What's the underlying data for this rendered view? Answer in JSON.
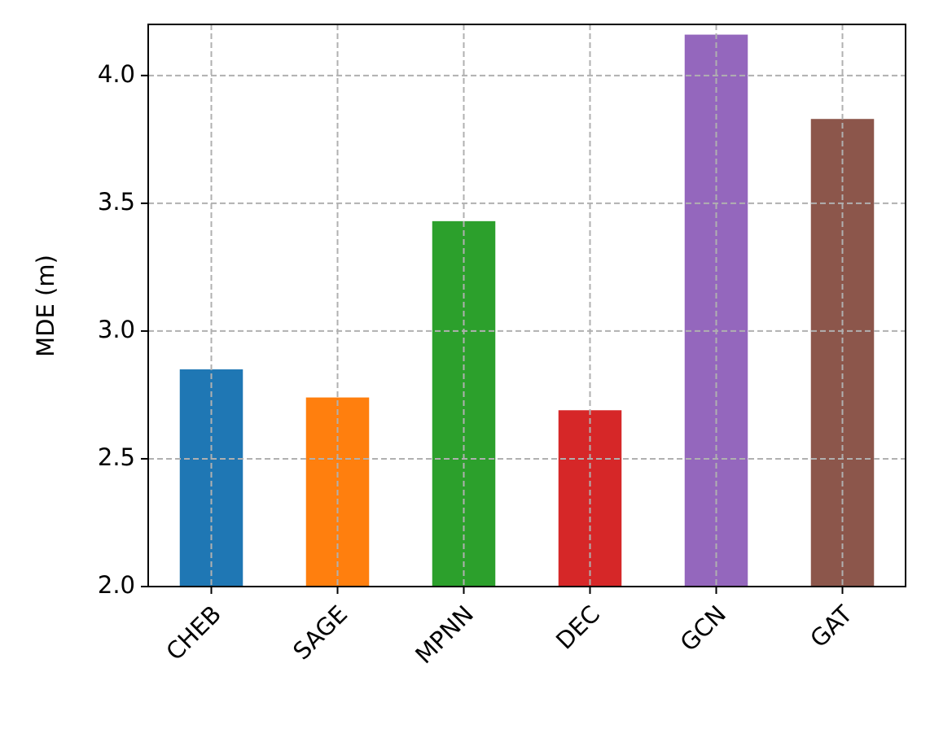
{
  "chart_data": {
    "type": "bar",
    "y_label": "MDE (m)",
    "categories": [
      "CHEB",
      "SAGE",
      "MPNN",
      "DEC",
      "GCN",
      "GAT"
    ],
    "values": [
      2.85,
      2.74,
      3.43,
      2.69,
      4.16,
      3.83
    ],
    "colors": [
      "#1f77b4",
      "#ff7f0e",
      "#2ca02c",
      "#d62728",
      "#9467bd",
      "#8c564b"
    ],
    "ylim": [
      2.0,
      4.2
    ],
    "yticks": [
      {
        "value": 2,
        "label": "2.0"
      },
      2.5,
      {
        "value": 3,
        "label": "3.0"
      },
      3.5,
      {
        "value": 4,
        "label": "4.0"
      }
    ],
    "grid": true
  }
}
